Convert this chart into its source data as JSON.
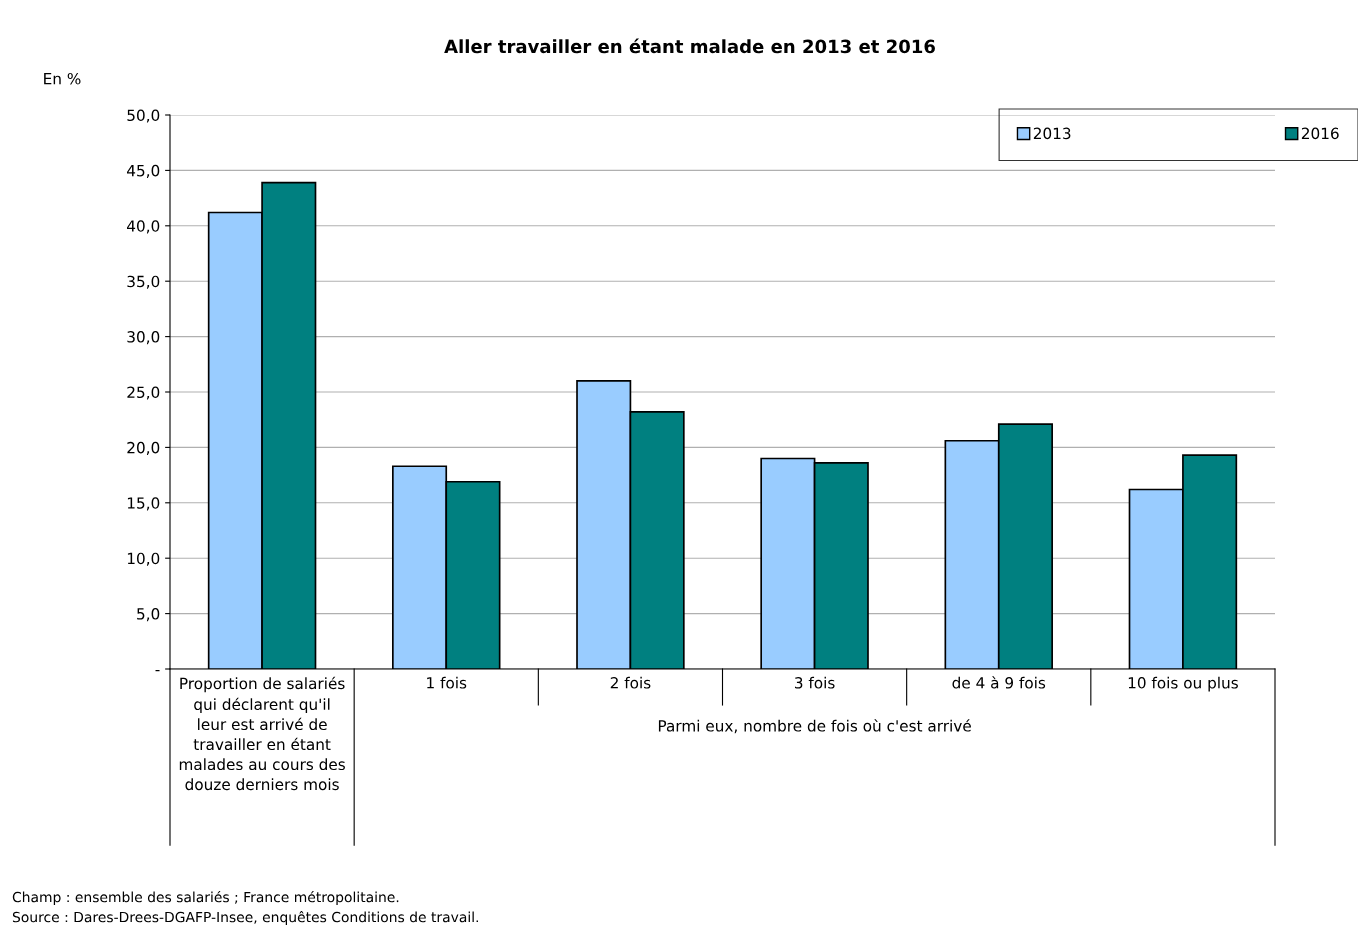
{
  "chart_data": {
    "type": "bar",
    "title": "Aller travailler en étant malade en 2013 et 2016",
    "ylabel": "En %",
    "categories": [
      "Proportion de salariés\nqui déclarent qu'il\nleur est arrivé de\ntravailler en étant\nmalades au cours des\ndouze derniers mois",
      "1 fois",
      "2 fois",
      "3 fois",
      "de 4 à 9 fois",
      "10 fois ou plus"
    ],
    "series": [
      {
        "name": "2013",
        "color": "#99ccff",
        "values": [
          41.2,
          18.3,
          26.0,
          19.0,
          20.6,
          16.2
        ]
      },
      {
        "name": "2016",
        "color": "#008080",
        "values": [
          43.9,
          16.9,
          23.2,
          18.6,
          22.1,
          19.3
        ]
      }
    ],
    "ylim": [
      0,
      50
    ],
    "yticks": [
      {
        "value": 0,
        "label": "-"
      },
      {
        "value": 5,
        "label": "5,0"
      },
      {
        "value": 10,
        "label": "10,0"
      },
      {
        "value": 15,
        "label": "15,0"
      },
      {
        "value": 20,
        "label": "20,0"
      },
      {
        "value": 25,
        "label": "25,0"
      },
      {
        "value": 30,
        "label": "30,0"
      },
      {
        "value": 35,
        "label": "35,0"
      },
      {
        "value": 40,
        "label": "40,0"
      },
      {
        "value": 45,
        "label": "45,0"
      },
      {
        "value": 50,
        "label": "50,0"
      }
    ],
    "grid": "y",
    "legend": "top right",
    "annotations": [
      "Parmi eux, nombre de fois où c'est arrivé",
      "Champ : ensemble des salariés ; France métropolitaine.",
      "Source : Dares-Drees-DGAFP-Insee, enquêtes Conditions de travail."
    ]
  }
}
